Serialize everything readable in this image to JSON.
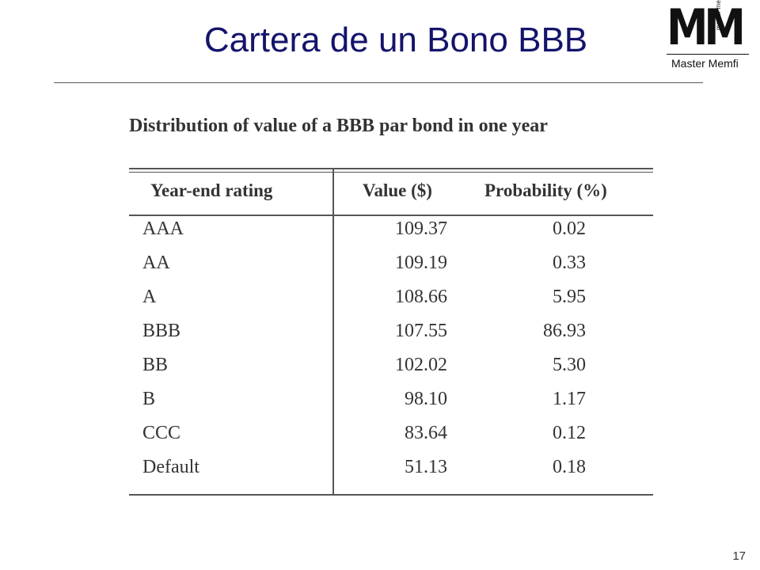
{
  "header": {
    "title": "Cartera de un Bono BBB"
  },
  "logo": {
    "mark": "MM",
    "tagline": "master memfi",
    "name": "Master Memfi"
  },
  "table": {
    "caption": "Distribution of value of a BBB par bond in one year",
    "columns": [
      "Year-end rating",
      "Value ($)",
      "Probability (%)"
    ],
    "rows": [
      [
        "AAA",
        "109.37",
        "0.02"
      ],
      [
        "AA",
        "109.19",
        "0.33"
      ],
      [
        "A",
        "108.66",
        "5.95"
      ],
      [
        "BBB",
        "107.55",
        "86.93"
      ],
      [
        "BB",
        "102.02",
        "5.30"
      ],
      [
        "B",
        "98.10",
        "1.17"
      ],
      [
        "CCC",
        "83.64",
        "0.12"
      ],
      [
        "Default",
        "51.13",
        "0.18"
      ]
    ]
  },
  "footer": {
    "page": "17"
  }
}
